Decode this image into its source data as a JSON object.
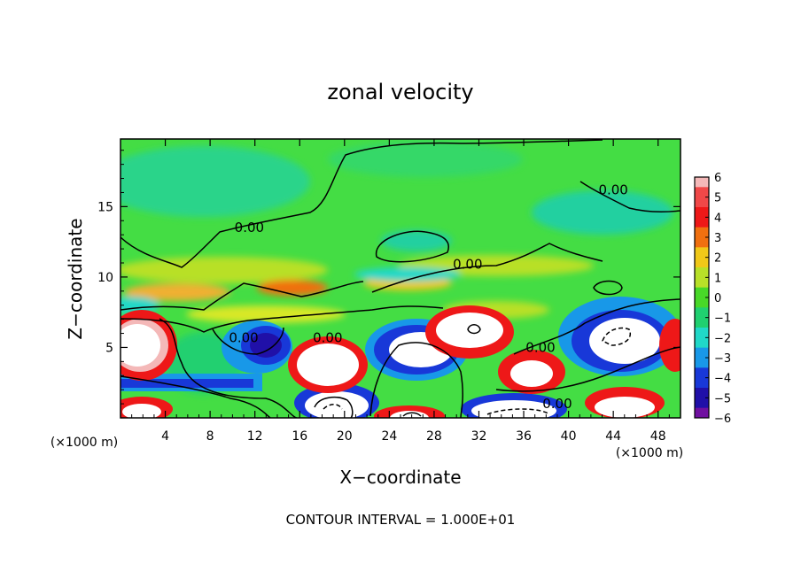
{
  "chart_data": {
    "type": "heatmap",
    "title": "zonal velocity",
    "xlabel": "X−coordinate",
    "ylabel": "Z−coordinate",
    "x_unit_left": "(×1000 m)",
    "x_unit_right": "(×1000 m)",
    "xlim": [
      0,
      50
    ],
    "ylim": [
      0,
      19.8
    ],
    "x_ticks": [
      4,
      8,
      12,
      16,
      20,
      24,
      28,
      32,
      36,
      40,
      44,
      48
    ],
    "x_tick_labels": [
      "4",
      "8",
      "12",
      "16",
      "20",
      "24",
      "28",
      "32",
      "36",
      "40",
      "44",
      "48"
    ],
    "y_ticks": [
      5,
      10,
      15
    ],
    "y_tick_labels": [
      "5",
      "10",
      "15"
    ],
    "colorbar": {
      "levels": [
        6,
        5,
        4,
        3,
        2,
        1,
        0,
        -1,
        -2,
        -3,
        -4,
        -5,
        -6
      ],
      "labels": [
        "6",
        "5",
        "4",
        "3",
        "2",
        "1",
        "0",
        "−1",
        "−2",
        "−3",
        "−4",
        "−5",
        "−6"
      ],
      "colors": [
        "#f4b8b8",
        "#f04848",
        "#ee1818",
        "#f07010",
        "#f0c818",
        "#b8e028",
        "#48d828",
        "#20d070",
        "#20d8c8",
        "#1898e8",
        "#1838d8",
        "#2010a8",
        "#7010a0"
      ]
    },
    "background_color": "#44dd44",
    "contour_labels": [
      {
        "text": "0.00",
        "x": 11.5,
        "z": 13.5
      },
      {
        "text": "0.00",
        "x": 31.0,
        "z": 10.9
      },
      {
        "text": "0.00",
        "x": 44.0,
        "z": 16.2
      },
      {
        "text": "0.00",
        "x": 11.0,
        "z": 5.7
      },
      {
        "text": "0.00",
        "x": 18.5,
        "z": 5.7
      },
      {
        "text": "0.00",
        "x": 37.5,
        "z": 5.0
      },
      {
        "text": "0.00",
        "x": 39.0,
        "z": 1.0
      }
    ],
    "contour_interval_text": "CONTOUR INTERVAL = 1.000E+01"
  }
}
